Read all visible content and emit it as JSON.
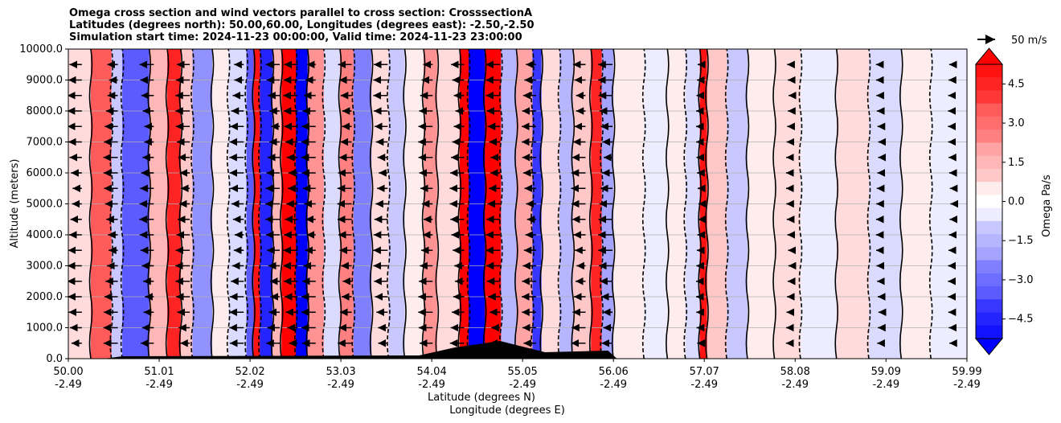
{
  "chart_data": {
    "type": "heatmap",
    "title_lines": [
      "Omega cross section and wind vectors parallel to cross section: CrosssectionA",
      "Latitudes (degrees north): 50.00,60.00, Longitudes (degrees east): -2.50,-2.50",
      "Simulation start time: 2024-11-23 00:00:00, Valid time: 2024-11-23 23:00:00"
    ],
    "ylabel": "Altitude (meters)",
    "xlabel": "Latitude (degrees N)",
    "xlabel2": "Longitude (degrees E)",
    "ylim": [
      0,
      10000
    ],
    "xlim": [
      50.0,
      59.99
    ],
    "grid": "horizontal",
    "y_ticks": [
      "0.0",
      "1000.0",
      "2000.0",
      "3000.0",
      "4000.0",
      "5000.0",
      "6000.0",
      "7000.0",
      "8000.0",
      "9000.0",
      "10000.0"
    ],
    "x_ticks": [
      {
        "lat": "50.00",
        "lon": "-2.49"
      },
      {
        "lat": "51.01",
        "lon": "-2.49"
      },
      {
        "lat": "52.02",
        "lon": "-2.49"
      },
      {
        "lat": "53.03",
        "lon": "-2.49"
      },
      {
        "lat": "54.04",
        "lon": "-2.49"
      },
      {
        "lat": "55.05",
        "lon": "-2.49"
      },
      {
        "lat": "56.06",
        "lon": "-2.49"
      },
      {
        "lat": "57.07",
        "lon": "-2.49"
      },
      {
        "lat": "58.08",
        "lon": "-2.49"
      },
      {
        "lat": "59.09",
        "lon": "-2.49"
      },
      {
        "lat": "59.99",
        "lon": "-2.49"
      }
    ],
    "colorbar": {
      "label": "Omega Pa/s",
      "range": [
        -5.25,
        5.25
      ],
      "ticks": [
        "4.5",
        "3.0",
        "1.5",
        "0.0",
        "−1.5",
        "−3.0",
        "−4.5"
      ],
      "extend": "both",
      "low_color": "#0000ff",
      "high_color": "#ff0000"
    },
    "vector_key": {
      "label": "50 m/s"
    },
    "omega_bands": [
      {
        "lat_start": 50.0,
        "lat_end": 50.25,
        "omega": 0.6
      },
      {
        "lat_start": 50.25,
        "lat_end": 50.48,
        "omega": 3.2
      },
      {
        "lat_start": 50.48,
        "lat_end": 50.6,
        "omega": -1.2
      },
      {
        "lat_start": 50.6,
        "lat_end": 50.9,
        "omega": -3.3
      },
      {
        "lat_start": 50.9,
        "lat_end": 51.1,
        "omega": 1.4
      },
      {
        "lat_start": 51.1,
        "lat_end": 51.25,
        "omega": 4.6
      },
      {
        "lat_start": 51.25,
        "lat_end": 51.38,
        "omega": 1.1
      },
      {
        "lat_start": 51.38,
        "lat_end": 51.6,
        "omega": -2.2
      },
      {
        "lat_start": 51.6,
        "lat_end": 51.78,
        "omega": 0.3
      },
      {
        "lat_start": 51.78,
        "lat_end": 51.98,
        "omega": -0.9
      },
      {
        "lat_start": 51.98,
        "lat_end": 52.06,
        "omega": -3.4
      },
      {
        "lat_start": 52.06,
        "lat_end": 52.13,
        "omega": 4.8
      },
      {
        "lat_start": 52.13,
        "lat_end": 52.27,
        "omega": -4.6
      },
      {
        "lat_start": 52.27,
        "lat_end": 52.37,
        "omega": 1.5
      },
      {
        "lat_start": 52.37,
        "lat_end": 52.53,
        "omega": 5.3
      },
      {
        "lat_start": 52.53,
        "lat_end": 52.66,
        "omega": -5.3
      },
      {
        "lat_start": 52.66,
        "lat_end": 52.84,
        "omega": 2.1
      },
      {
        "lat_start": 52.84,
        "lat_end": 53.02,
        "omega": -0.6
      },
      {
        "lat_start": 53.02,
        "lat_end": 53.17,
        "omega": 2.6
      },
      {
        "lat_start": 53.17,
        "lat_end": 53.37,
        "omega": -2.6
      },
      {
        "lat_start": 53.37,
        "lat_end": 53.56,
        "omega": 0.9
      },
      {
        "lat_start": 53.56,
        "lat_end": 53.74,
        "omega": -1.3
      },
      {
        "lat_start": 53.74,
        "lat_end": 53.95,
        "omega": 0.4
      },
      {
        "lat_start": 53.95,
        "lat_end": 54.1,
        "omega": 2.2
      },
      {
        "lat_start": 54.1,
        "lat_end": 54.35,
        "omega": 0.7
      },
      {
        "lat_start": 54.35,
        "lat_end": 54.45,
        "omega": 5.3
      },
      {
        "lat_start": 54.45,
        "lat_end": 54.63,
        "omega": -5.3
      },
      {
        "lat_start": 54.63,
        "lat_end": 54.81,
        "omega": 5.3
      },
      {
        "lat_start": 54.81,
        "lat_end": 54.98,
        "omega": -1.6
      },
      {
        "lat_start": 54.98,
        "lat_end": 55.16,
        "omega": 1.8
      },
      {
        "lat_start": 55.16,
        "lat_end": 55.26,
        "omega": -4.2
      },
      {
        "lat_start": 55.26,
        "lat_end": 55.46,
        "omega": 0.9
      },
      {
        "lat_start": 55.46,
        "lat_end": 55.61,
        "omega": -1.4
      },
      {
        "lat_start": 55.61,
        "lat_end": 55.81,
        "omega": 1.2
      },
      {
        "lat_start": 55.81,
        "lat_end": 55.93,
        "omega": 4.6
      },
      {
        "lat_start": 55.93,
        "lat_end": 56.06,
        "omega": -1.9
      },
      {
        "lat_start": 56.06,
        "lat_end": 56.4,
        "omega": 0.4
      },
      {
        "lat_start": 56.4,
        "lat_end": 56.66,
        "omega": -0.5
      },
      {
        "lat_start": 56.66,
        "lat_end": 56.86,
        "omega": 0.3
      },
      {
        "lat_start": 56.86,
        "lat_end": 57.02,
        "omega": -0.7
      },
      {
        "lat_start": 57.02,
        "lat_end": 57.1,
        "omega": 4.9
      },
      {
        "lat_start": 57.1,
        "lat_end": 57.32,
        "omega": 1.2
      },
      {
        "lat_start": 57.32,
        "lat_end": 57.55,
        "omega": -1.1
      },
      {
        "lat_start": 57.55,
        "lat_end": 57.85,
        "omega": 0.5
      },
      {
        "lat_start": 57.85,
        "lat_end": 58.14,
        "omega": 0.9
      },
      {
        "lat_start": 58.14,
        "lat_end": 58.54,
        "omega": -0.4
      },
      {
        "lat_start": 58.54,
        "lat_end": 58.9,
        "omega": 0.7
      },
      {
        "lat_start": 58.9,
        "lat_end": 59.26,
        "omega": -0.7
      },
      {
        "lat_start": 59.26,
        "lat_end": 59.59,
        "omega": 0.5
      },
      {
        "lat_start": 59.59,
        "lat_end": 59.99,
        "omega": -0.2
      }
    ]
  }
}
